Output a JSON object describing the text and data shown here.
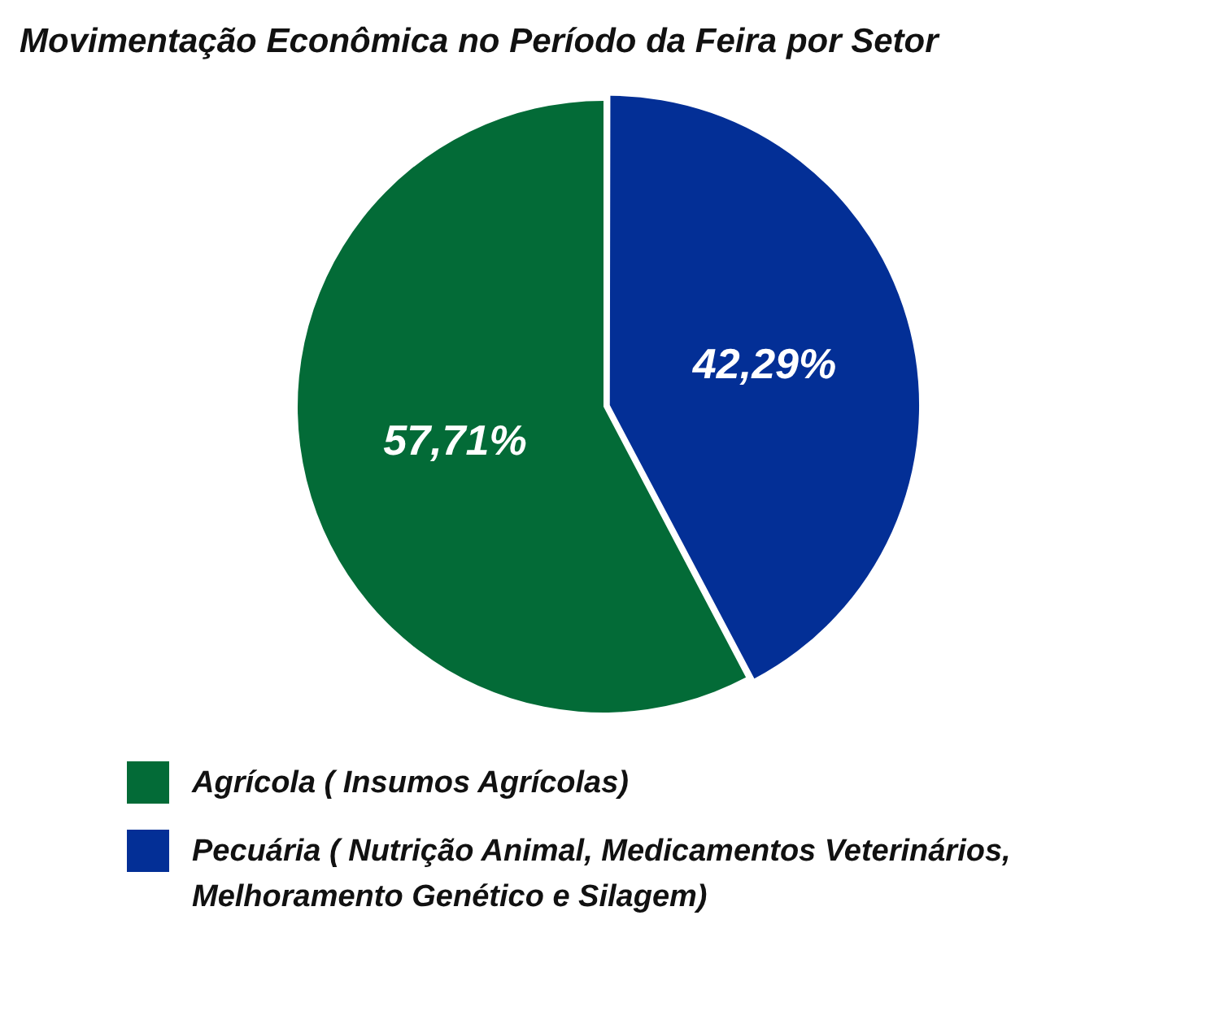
{
  "chart_data": {
    "type": "pie",
    "title": "Movimentação Econômica no Período da Feira por Setor",
    "categories": [
      "Agrícola ( Insumos Agrícolas)",
      "Pecuária ( Nutrição Animal, Medicamentos Veterinários, Melhoramento Genético e Silagem)"
    ],
    "values": [
      57.71,
      42.29
    ],
    "value_labels": [
      "57,71%",
      "42,29%"
    ],
    "colors": [
      "#036b37",
      "#032f96"
    ],
    "legend": "bottom"
  }
}
